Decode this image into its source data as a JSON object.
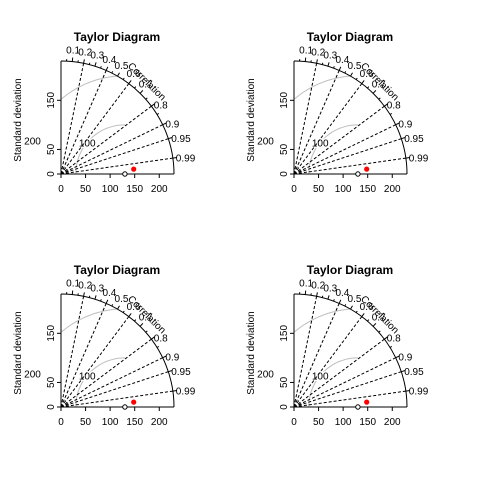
{
  "colors": {
    "axis": "#000000",
    "rms_contour": "#bebebe",
    "model_point": "#ff0000",
    "reference_point": "#000000",
    "background": "#ffffff"
  },
  "chart_data": [
    {
      "type": "scatter",
      "title": "Taylor Diagram",
      "ylabel": "Standard deviation",
      "arc_label": "Correlation",
      "x_ticks": [
        "0",
        "50",
        "100",
        "150",
        "200"
      ],
      "y_ticks": [
        "0",
        "50",
        "150"
      ],
      "correlation_ticks": [
        "0.1",
        "0.2",
        "0.3",
        "0.4",
        "0.5",
        "0.6",
        "0.7",
        "0.8",
        "0.9",
        "0.95",
        "0.99"
      ],
      "rms_contours": [
        100,
        200
      ],
      "sd_max": 230,
      "reference_point": {
        "x": 130,
        "y": 0
      },
      "model_point": {
        "x": 148,
        "y": 10
      }
    },
    {
      "type": "scatter",
      "title": "Taylor Diagram",
      "ylabel": "Standard deviation",
      "arc_label": "Correlation",
      "x_ticks": [
        "0",
        "50",
        "100",
        "150",
        "200"
      ],
      "y_ticks": [
        "0",
        "50",
        "150"
      ],
      "correlation_ticks": [
        "0.1",
        "0.2",
        "0.3",
        "0.4",
        "0.5",
        "0.6",
        "0.7",
        "0.8",
        "0.9",
        "0.95",
        "0.99"
      ],
      "rms_contours": [
        100,
        200
      ],
      "sd_max": 230,
      "reference_point": {
        "x": 130,
        "y": 0
      },
      "model_point": {
        "x": 148,
        "y": 10
      }
    },
    {
      "type": "scatter",
      "title": "Taylor Diagram",
      "ylabel": "Standard deviation",
      "arc_label": "Correlation",
      "x_ticks": [
        "0",
        "50",
        "100",
        "150",
        "200"
      ],
      "y_ticks": [
        "0",
        "50",
        "150"
      ],
      "correlation_ticks": [
        "0.1",
        "0.2",
        "0.3",
        "0.4",
        "0.5",
        "0.6",
        "0.7",
        "0.8",
        "0.9",
        "0.95",
        "0.99"
      ],
      "rms_contours": [
        100,
        200
      ],
      "sd_max": 230,
      "reference_point": {
        "x": 130,
        "y": 0
      },
      "model_point": {
        "x": 148,
        "y": 10
      }
    },
    {
      "type": "scatter",
      "title": "Taylor Diagram",
      "ylabel": "Standard deviation",
      "arc_label": "Correlation",
      "x_ticks": [
        "0",
        "50",
        "100",
        "150",
        "200"
      ],
      "y_ticks": [
        "0",
        "50",
        "150"
      ],
      "correlation_ticks": [
        "0.1",
        "0.2",
        "0.3",
        "0.4",
        "0.5",
        "0.6",
        "0.7",
        "0.8",
        "0.9",
        "0.95",
        "0.99"
      ],
      "rms_contours": [
        100,
        200
      ],
      "sd_max": 230,
      "reference_point": {
        "x": 130,
        "y": 0
      },
      "model_point": {
        "x": 148,
        "y": 10
      }
    }
  ]
}
